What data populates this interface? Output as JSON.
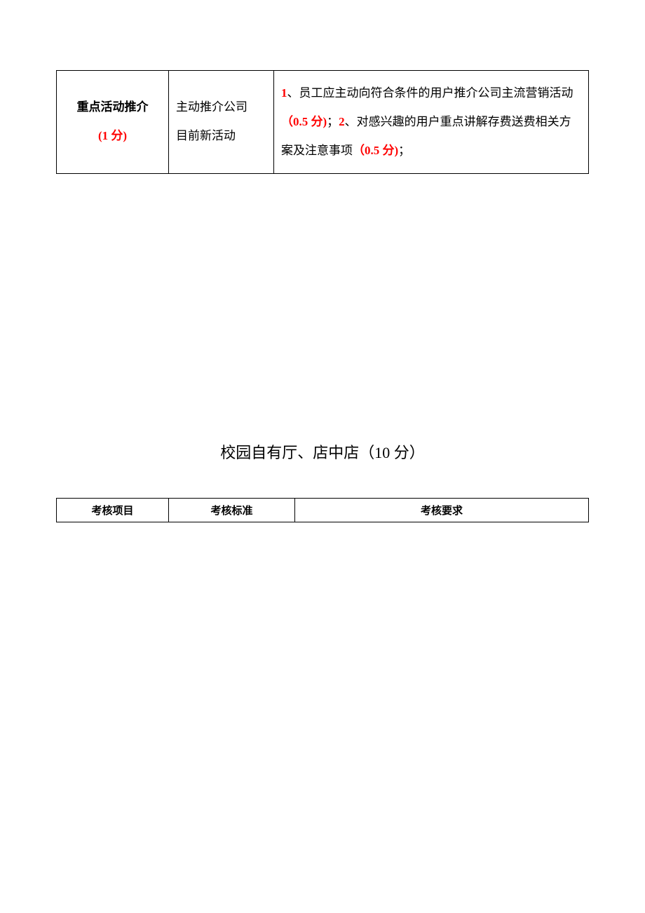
{
  "table1": {
    "row1": {
      "title_line1": "重点活动推介",
      "title_line2": "(1 分)",
      "standard_line1": "主动推介公司",
      "standard_line2": "目前新活动",
      "req_p1_num": "1",
      "req_p1_a": "、员工应主动向符合条件的用户推介公司主流营销活动",
      "req_p1_score": "（0.5 分)",
      "req_sep": "；",
      "req_p2_num": "2",
      "req_p2_a": "、对感兴趣的用户重点讲解存费送费相关方案及注意事项",
      "req_p2_score": "（0.5 分)",
      "req_tail": "；"
    }
  },
  "section_title": "校园自有厅、店中店（10 分）",
  "table2": {
    "h1": "考核项目",
    "h2": "考核标准",
    "h3": "考核要求"
  }
}
